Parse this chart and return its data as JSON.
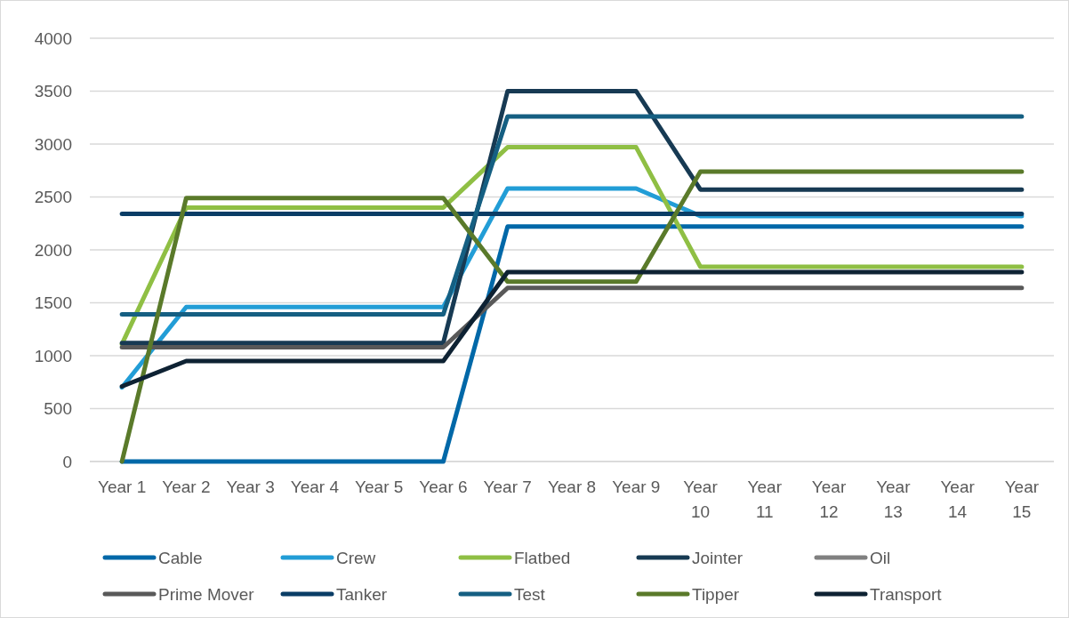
{
  "chart_data": {
    "type": "line",
    "categories": [
      "Year 1",
      "Year 2",
      "Year 3",
      "Year 4",
      "Year 5",
      "Year 6",
      "Year 7",
      "Year 8",
      "Year 9",
      "Year 10",
      "Year 11",
      "Year 12",
      "Year 13",
      "Year 14",
      "Year 15"
    ],
    "ylim": [
      0,
      4000
    ],
    "yticks": [
      0,
      500,
      1000,
      1500,
      2000,
      2500,
      3000,
      3500,
      4000
    ],
    "grid": "y",
    "legend": "bottom",
    "marker": "none",
    "line_style": "solid",
    "series": [
      {
        "name": "Cable",
        "color": "#0068a8",
        "values": [
          0,
          0,
          0,
          0,
          0,
          0,
          2220,
          2220,
          2220,
          2220,
          2220,
          2220,
          2220,
          2220,
          2220
        ]
      },
      {
        "name": "Crew",
        "color": "#229dd6",
        "values": [
          700,
          1460,
          1460,
          1460,
          1460,
          1460,
          2580,
          2580,
          2580,
          2320,
          2320,
          2320,
          2320,
          2320,
          2320
        ]
      },
      {
        "name": "Flatbed",
        "color": "#8fbf44",
        "values": [
          1110,
          2400,
          2400,
          2400,
          2400,
          2400,
          2970,
          2970,
          2970,
          1840,
          1840,
          1840,
          1840,
          1840,
          1840
        ]
      },
      {
        "name": "Jointer",
        "color": "#173a53",
        "values": [
          1120,
          1120,
          1120,
          1120,
          1120,
          1120,
          3500,
          3500,
          3500,
          2570,
          2570,
          2570,
          2570,
          2570,
          2570
        ]
      },
      {
        "name": "Oil",
        "color": "#808080",
        "values": [
          null,
          null,
          null,
          null,
          null,
          null,
          null,
          null,
          null,
          null,
          null,
          null,
          null,
          null,
          null
        ]
      },
      {
        "name": "Prime Mover",
        "color": "#595959",
        "values": [
          1080,
          1080,
          1080,
          1080,
          1080,
          1080,
          1640,
          1640,
          1640,
          1640,
          1640,
          1640,
          1640,
          1640,
          1640
        ]
      },
      {
        "name": "Tanker",
        "color": "#0a3d66",
        "values": [
          2340,
          2340,
          2340,
          2340,
          2340,
          2340,
          2340,
          2340,
          2340,
          2340,
          2340,
          2340,
          2340,
          2340,
          2340
        ]
      },
      {
        "name": "Test",
        "color": "#155f82",
        "values": [
          1390,
          1390,
          1390,
          1390,
          1390,
          1390,
          3260,
          3260,
          3260,
          3260,
          3260,
          3260,
          3260,
          3260,
          3260
        ]
      },
      {
        "name": "Tipper",
        "color": "#5a7a2a",
        "values": [
          0,
          2490,
          2490,
          2490,
          2490,
          2490,
          1700,
          1700,
          1700,
          2740,
          2740,
          2740,
          2740,
          2740,
          2740
        ]
      },
      {
        "name": "Transport",
        "color": "#0e2233",
        "values": [
          710,
          950,
          950,
          950,
          950,
          950,
          1790,
          1790,
          1790,
          1790,
          1790,
          1790,
          1790,
          1790,
          1790
        ]
      }
    ]
  }
}
